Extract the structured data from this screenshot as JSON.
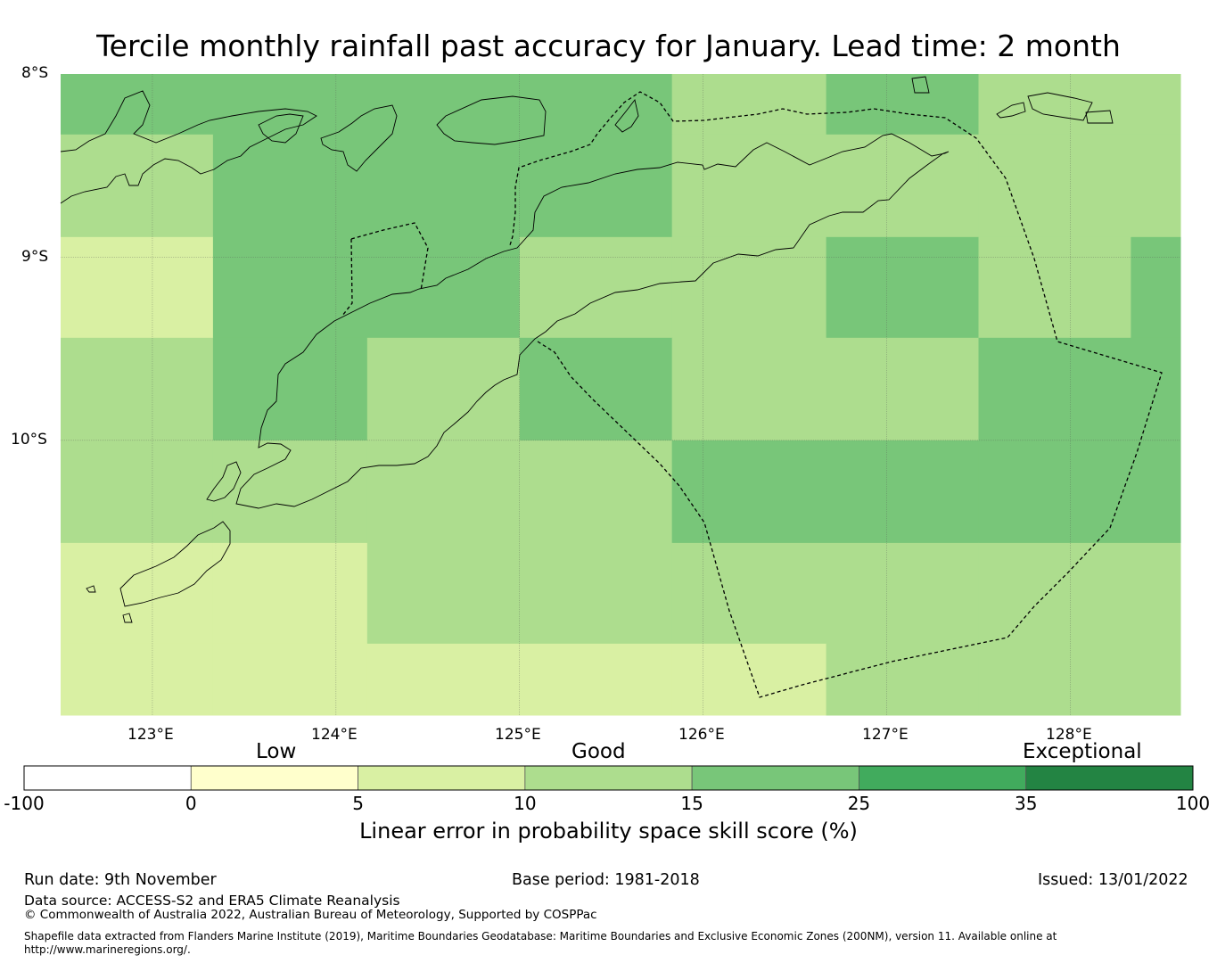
{
  "title": "Tercile monthly rainfall past accuracy for January. Lead time: 2 month",
  "map": {
    "lat_labels": [
      "8°S",
      "9°S",
      "10°S"
    ],
    "lon_labels": [
      "123°E",
      "124°E",
      "125°E",
      "126°E",
      "127°E",
      "128°E"
    ],
    "lon_range": [
      122.5,
      128.6
    ],
    "lat_range": [
      -11.5,
      -8.0
    ],
    "grid_columns_lon": [
      122.5,
      123.33,
      124.17,
      125.0,
      125.83,
      126.67,
      127.5,
      128.33,
      128.6
    ],
    "grid_rows_lat": [
      -8.0,
      -8.33,
      -8.89,
      -9.44,
      -10.0,
      -10.56,
      -11.11,
      -11.5
    ],
    "skill_cells": [
      [
        17,
        17,
        17,
        17,
        14,
        17,
        14,
        14
      ],
      [
        14,
        17,
        17,
        17,
        14,
        14,
        14,
        14
      ],
      [
        8,
        17,
        17,
        14,
        14,
        17,
        14,
        17
      ],
      [
        14,
        17,
        14,
        17,
        14,
        14,
        17,
        17
      ],
      [
        14,
        14,
        14,
        14,
        17,
        17,
        17,
        17
      ],
      [
        8,
        8,
        14,
        14,
        14,
        14,
        14,
        14
      ],
      [
        8,
        8,
        8,
        8,
        8,
        14,
        14,
        14
      ]
    ]
  },
  "colorbar": {
    "category_labels": [
      "Low",
      "Good",
      "Exceptional"
    ],
    "bins": [
      {
        "from": "-100",
        "to": "0",
        "color": "#ffffff"
      },
      {
        "from": "0",
        "to": "5",
        "color": "#ffffcc"
      },
      {
        "from": "5",
        "to": "10",
        "color": "#d9f0a3"
      },
      {
        "from": "10",
        "to": "15",
        "color": "#addd8e"
      },
      {
        "from": "15",
        "to": "25",
        "color": "#78c679"
      },
      {
        "from": "25",
        "to": "35",
        "color": "#41ab5d"
      },
      {
        "from": "35",
        "to": "100",
        "color": "#238443"
      }
    ],
    "tick_labels": [
      "-100",
      "0",
      "5",
      "10",
      "15",
      "25",
      "35",
      "100"
    ],
    "title": "Linear error in probability space skill score (%)"
  },
  "footer": {
    "run_date": "Run date: 9th November",
    "base_period": "Base period: 1981-2018",
    "issued": "Issued: 13/01/2022",
    "data_source": "Data source: ACCESS-S2 and ERA5 Climate Reanalysis",
    "copyright": "© Commonwealth of Australia 2022, Australian Bureau of Meteorology, Supported by COSPPac",
    "shapefile_line1": "Shapefile data extracted from Flanders Marine Institute (2019), Maritime Boundaries Geodatabase: Maritime Boundaries and Exclusive Economic Zones (200NM), version 11. Available online at",
    "shapefile_line2": "http://www.marineregions.org/."
  },
  "colors": {
    "grid": "#555555",
    "coast": "#000000",
    "eez": "#000000"
  }
}
